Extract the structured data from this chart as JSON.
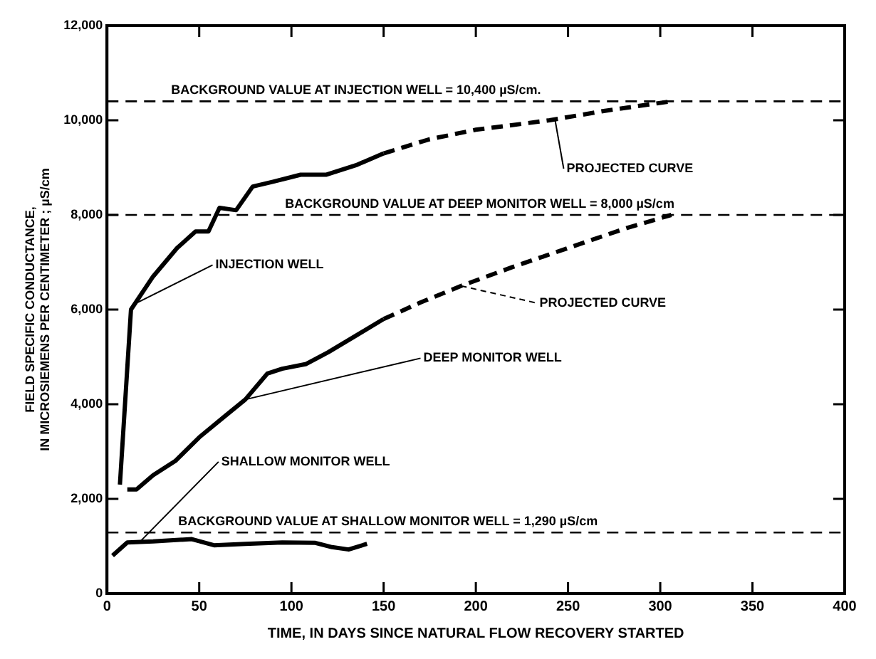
{
  "chart_data": {
    "type": "line",
    "xlabel": "TIME, IN DAYS SINCE NATURAL FLOW RECOVERY STARTED",
    "ylabel": "FIELD SPECIFIC CONDUCTANCE,\nIN MICROSIEMENS PER CENTIMETER ; µS/cm",
    "xlim": [
      0,
      400
    ],
    "xticks": [
      0,
      50,
      100,
      150,
      200,
      250,
      300,
      350,
      400
    ],
    "ylim": [
      0,
      12000
    ],
    "yticks": [
      0,
      {
        "value": 2000,
        "label": "2,000"
      },
      {
        "value": 4000,
        "label": "4,000"
      },
      {
        "value": 6000,
        "label": "6,000"
      },
      {
        "value": 8000,
        "label": "8,000"
      },
      {
        "value": 10000,
        "label": "10,000"
      },
      {
        "value": 12000,
        "label": "12,000"
      }
    ],
    "grid": false,
    "legend": false,
    "marker": "none",
    "series": [
      {
        "color": "#000000",
        "line_style": "solid",
        "x": [
          7,
          13,
          25,
          38,
          48,
          55,
          61,
          70,
          79,
          90,
          105,
          119,
          135,
          150
        ],
        "values": [
          2300,
          6000,
          6700,
          7300,
          7650,
          7650,
          8150,
          8100,
          8600,
          8700,
          8850,
          8850,
          9050,
          9300
        ]
      },
      {
        "color": "#000000",
        "line_style": "dashed",
        "x": [
          150,
          175,
          200,
          240,
          270,
          306
        ],
        "values": [
          9300,
          9600,
          9800,
          10000,
          10200,
          10400
        ]
      },
      {
        "color": "#000000",
        "line_style": "solid",
        "x": [
          11,
          16,
          25,
          37,
          50,
          64,
          75,
          87,
          95,
          108,
          120,
          135,
          150
        ],
        "values": [
          2200,
          2200,
          2500,
          2800,
          3300,
          3750,
          4100,
          4650,
          4750,
          4850,
          5100,
          5450,
          5800
        ]
      },
      {
        "color": "#000000",
        "line_style": "dashed",
        "x": [
          150,
          170,
          192,
          220,
          250,
          280,
          306
        ],
        "values": [
          5800,
          6150,
          6500,
          6900,
          7300,
          7700,
          8000
        ]
      },
      {
        "color": "#000000",
        "line_style": "solid",
        "x": [
          3,
          11,
          25,
          46,
          58,
          75,
          95,
          113,
          122,
          131,
          141
        ],
        "values": [
          800,
          1080,
          1100,
          1150,
          1020,
          1050,
          1080,
          1070,
          980,
          930,
          1050
        ]
      }
    ],
    "ref_lines": [
      {
        "axis": "y",
        "value": 10400,
        "label": "BACKGROUND VALUE AT INJECTION WELL = 10,400 µS/cm.",
        "color": "#000000",
        "line_style": "dashed"
      },
      {
        "axis": "y",
        "value": 8000,
        "label": "BACKGROUND VALUE AT DEEP MONITOR WELL = 8,000 µS/cm",
        "color": "#000000",
        "line_style": "dashed"
      },
      {
        "axis": "y",
        "value": 1290,
        "label": "BACKGROUND VALUE AT SHALLOW MONITOR WELL = 1,290 µS/cm",
        "color": "#000000",
        "line_style": "dashed"
      }
    ],
    "annotations": [
      {
        "text": "INJECTION WELL",
        "x": 14,
        "y": 6100
      },
      {
        "text": "DEEP MONITOR WELL",
        "x": 75,
        "y": 4100
      },
      {
        "text": "SHALLOW MONITOR WELL",
        "x": 18,
        "y": 1100
      },
      {
        "text": "PROJECTED CURVE",
        "x": 243,
        "y": 10000
      },
      {
        "text": "PROJECTED CURVE",
        "x": 192,
        "y": 6500
      }
    ]
  }
}
